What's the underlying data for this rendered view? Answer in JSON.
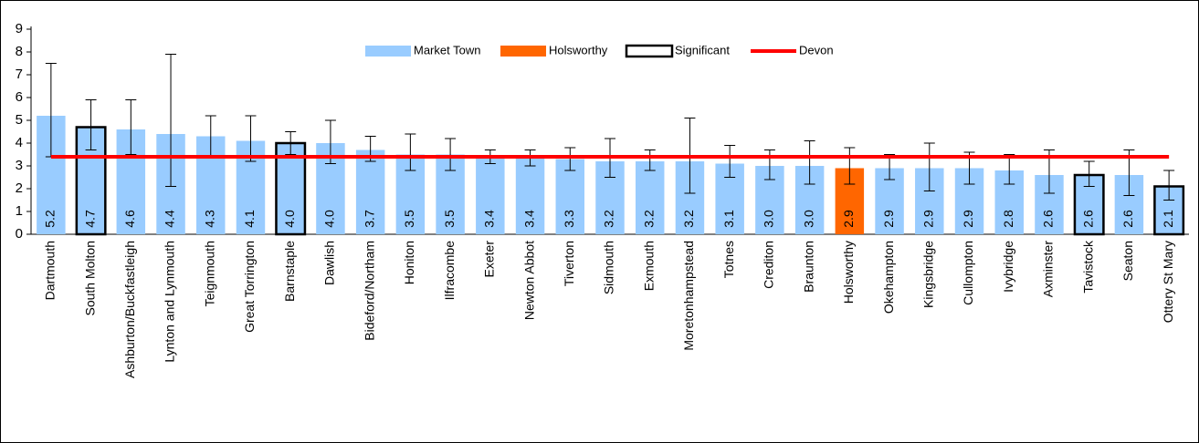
{
  "chart_data": {
    "type": "bar",
    "categories": [
      "Dartmouth",
      "South Molton",
      "Ashburton/Buckfastleigh",
      "Lynton and Lynmouth",
      "Teignmouth",
      "Great Torrington",
      "Barnstaple",
      "Dawlish",
      "Bideford/Northam",
      "Honiton",
      "Ilfracombe",
      "Exeter",
      "Newton Abbot",
      "Tiverton",
      "Sidmouth",
      "Exmouth",
      "Moretonhampstead",
      "Totnes",
      "Crediton",
      "Braunton",
      "Holsworthy",
      "Okehampton",
      "Kingsbridge",
      "Cullompton",
      "Ivybridge",
      "Axminster",
      "Tavistock",
      "Seaton",
      "Ottery St Mary"
    ],
    "series": [
      {
        "name": "Market Town",
        "color": "#99ccff",
        "values": [
          5.2,
          4.7,
          4.6,
          4.4,
          4.3,
          4.1,
          4.0,
          4.0,
          3.7,
          3.5,
          3.5,
          3.4,
          3.4,
          3.3,
          3.2,
          3.2,
          3.2,
          3.1,
          3.0,
          3.0,
          2.9,
          2.9,
          2.9,
          2.9,
          2.8,
          2.6,
          2.6,
          2.6,
          2.1
        ],
        "value_labels": [
          "5.2",
          "4.7",
          "4.6",
          "4.4",
          "4.3",
          "4.1",
          "4.0",
          "4.0",
          "3.7",
          "3.5",
          "3.5",
          "3.4",
          "3.4",
          "3.3",
          "3.2",
          "3.2",
          "3.2",
          "3.1",
          "3.0",
          "3.0",
          "2.9",
          "2.9",
          "2.9",
          "2.9",
          "2.8",
          "2.6",
          "2.6",
          "2.6",
          "2.1"
        ],
        "error_low": [
          3.4,
          3.7,
          3.5,
          2.1,
          3.4,
          3.2,
          3.5,
          3.1,
          3.2,
          2.8,
          2.8,
          3.1,
          3.0,
          2.8,
          2.5,
          2.8,
          1.8,
          2.5,
          2.4,
          2.2,
          2.2,
          2.4,
          1.9,
          2.2,
          2.2,
          1.8,
          2.1,
          1.7,
          1.5
        ],
        "error_high": [
          7.5,
          5.9,
          5.9,
          7.9,
          5.2,
          5.2,
          4.5,
          5.0,
          4.3,
          4.4,
          4.2,
          3.7,
          3.7,
          3.8,
          4.2,
          3.7,
          5.1,
          3.9,
          3.7,
          4.1,
          3.8,
          3.5,
          4.0,
          3.6,
          3.5,
          3.7,
          3.2,
          3.7,
          2.8
        ],
        "significant": [
          false,
          true,
          false,
          false,
          false,
          false,
          true,
          false,
          false,
          false,
          false,
          false,
          false,
          false,
          false,
          false,
          false,
          false,
          false,
          false,
          false,
          false,
          false,
          false,
          false,
          false,
          true,
          false,
          true
        ]
      }
    ],
    "highlight": {
      "name": "Holsworthy",
      "color": "#ff6600"
    },
    "significant_legend": {
      "name": "Significant",
      "color": "#000000"
    },
    "reference": {
      "name": "Devon",
      "color": "#ff0000",
      "value": 3.4
    },
    "ylim": [
      0,
      9
    ],
    "yticks": [
      0,
      1,
      2,
      3,
      4,
      5,
      6,
      7,
      8,
      9
    ],
    "grid": false,
    "legend": "top"
  }
}
